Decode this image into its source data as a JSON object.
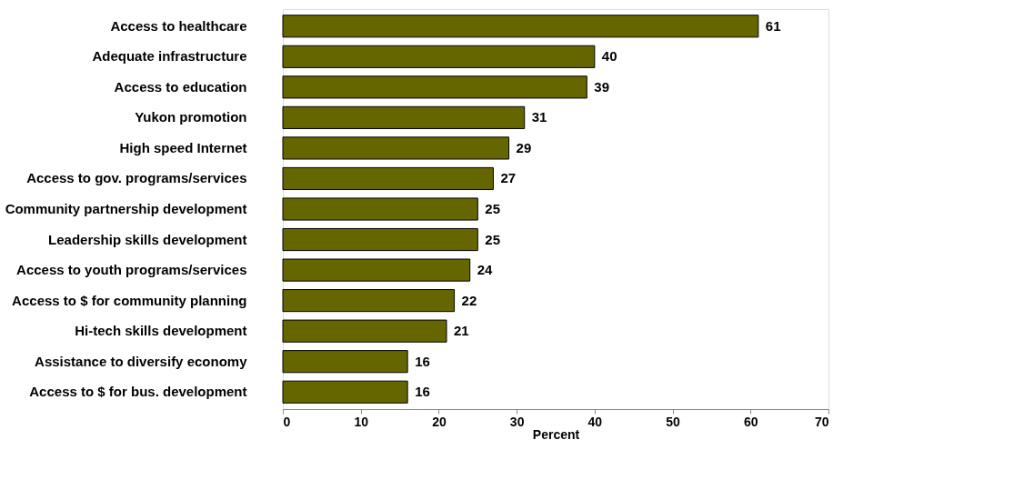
{
  "chart_data": {
    "type": "bar",
    "orientation": "horizontal",
    "xlabel": "Percent",
    "categories": [
      "Access to healthcare",
      "Adequate infrastructure",
      "Access to education",
      "Yukon promotion",
      "High speed Internet",
      "Access to gov. programs/services",
      "Community partnership development",
      "Leadership skills development",
      "Access to youth programs/services",
      "Access to $ for community planning",
      "Hi-tech skills development",
      "Assistance to diversify economy",
      "Access to $ for bus. development"
    ],
    "values": [
      61,
      40,
      39,
      31,
      29,
      27,
      25,
      25,
      24,
      22,
      21,
      16,
      16
    ],
    "color": "#666600",
    "xlim": [
      0,
      70
    ],
    "xticks": [
      0,
      10,
      20,
      30,
      40,
      50,
      60,
      70
    ],
    "grid": false,
    "legend": false,
    "data_labels": true
  }
}
